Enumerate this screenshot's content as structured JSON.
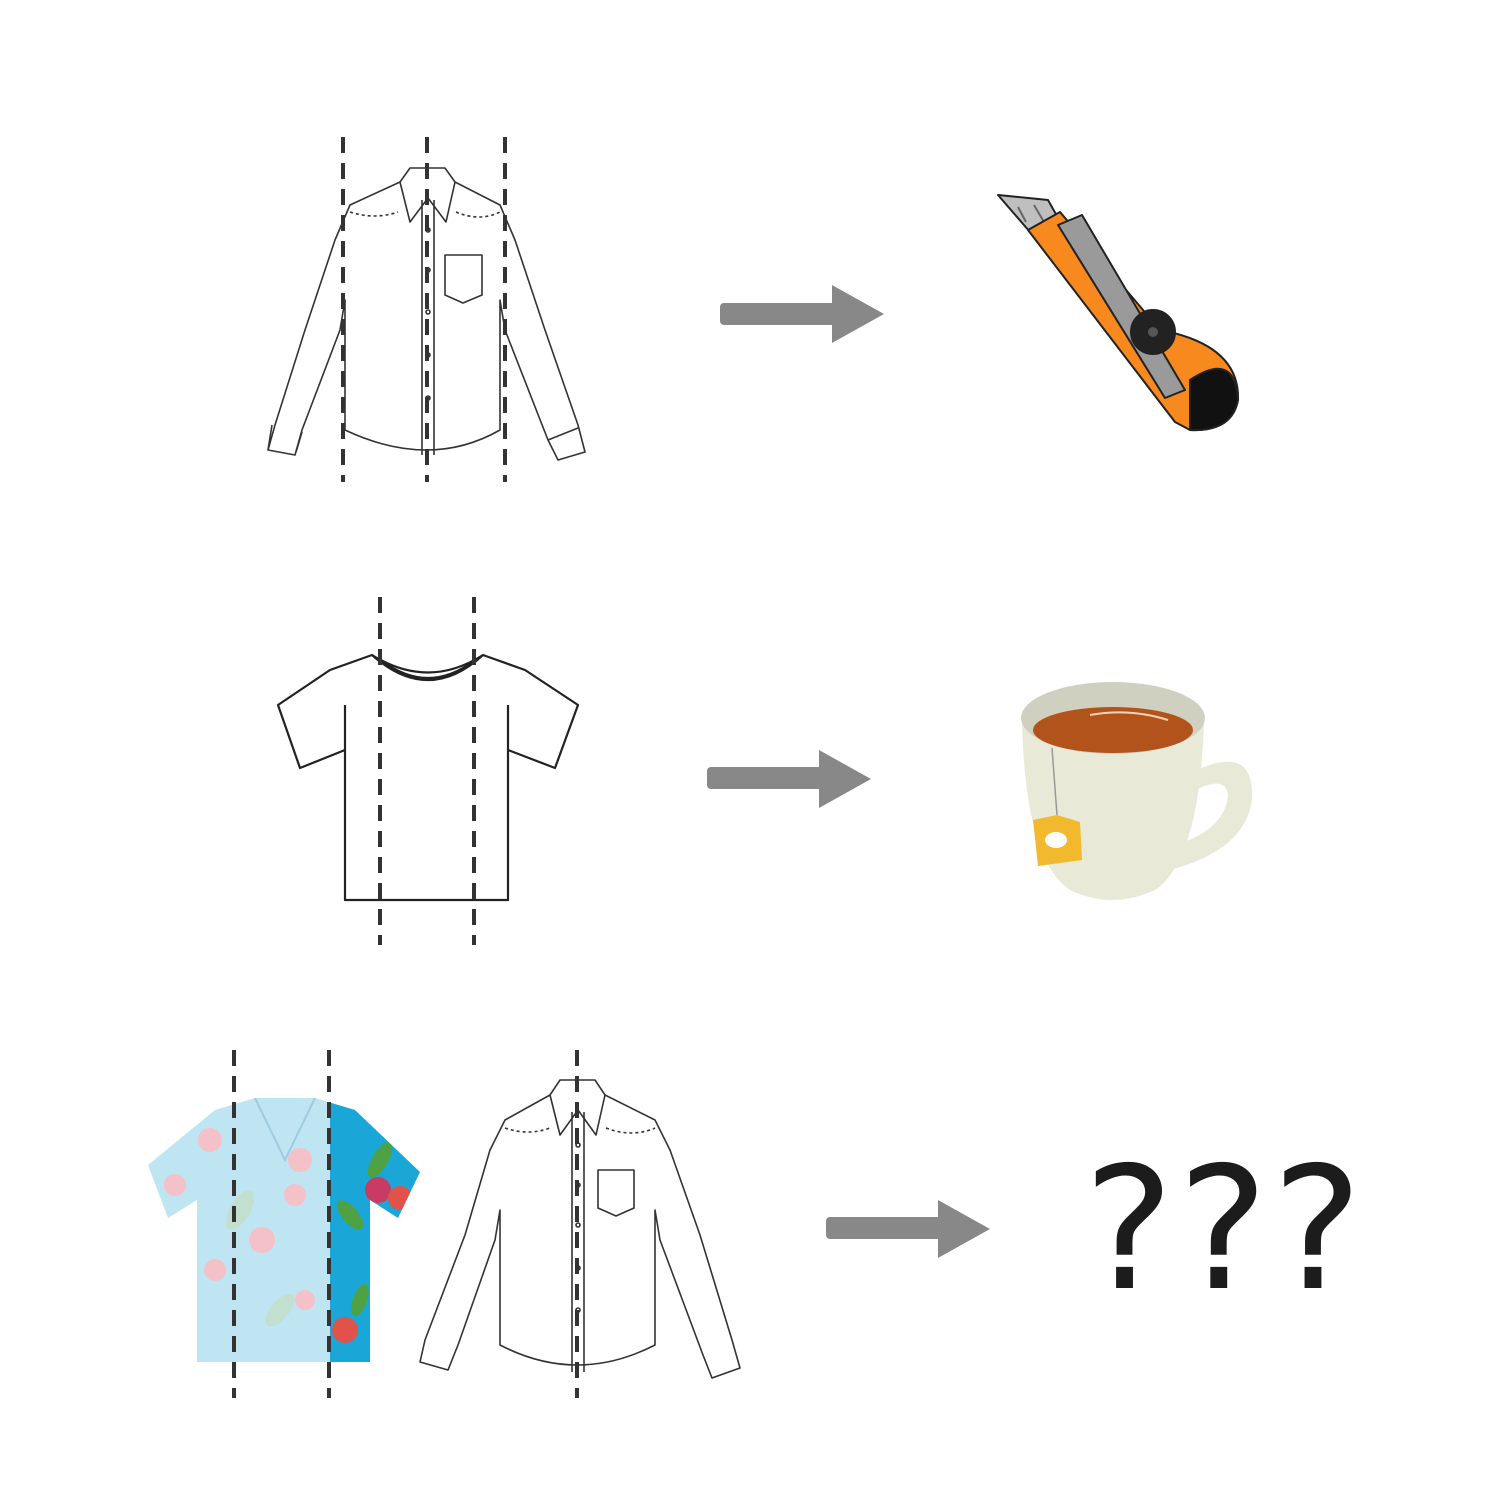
{
  "rows": [
    {
      "input": "long-sleeve-shirt-icon",
      "cut_count": 3,
      "output": "utility-knife-icon"
    },
    {
      "input": "t-shirt-icon",
      "cut_count": 2,
      "output": "tea-cup-icon"
    },
    {
      "inputs": [
        "hawaiian-shirt-icon",
        "long-sleeve-shirt-icon"
      ],
      "output_text": "???"
    }
  ],
  "colors": {
    "arrow": "#888888",
    "dash": "#333333",
    "knife_orange": "#f7891f",
    "tea": "#b3531c",
    "cup": "#e8e9d6",
    "hawaiian_blue": "#1aa7d8"
  }
}
